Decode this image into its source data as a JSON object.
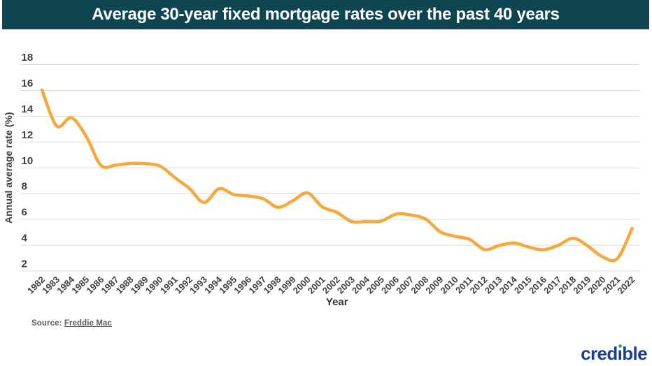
{
  "header": {
    "title": "Average 30-year fixed mortgage rates over the past 40 years",
    "background": "#0e4551"
  },
  "chart_data": {
    "type": "line",
    "title": "Average 30-year fixed mortgage rates over the past 40 years",
    "xlabel": "Year",
    "ylabel": "Annual average rate (%)",
    "x": [
      "1982",
      "1983",
      "1984",
      "1985",
      "1986",
      "1987",
      "1988",
      "1989",
      "1990",
      "1991",
      "1992",
      "1993",
      "1994",
      "1995",
      "1996",
      "1997",
      "1998",
      "1999",
      "2000",
      "2001",
      "2002",
      "2003",
      "2004",
      "2005",
      "2006",
      "2007",
      "2008",
      "2009",
      "2010",
      "2011",
      "2012",
      "2013",
      "2014",
      "2015",
      "2016",
      "2017",
      "2018",
      "2019",
      "2020",
      "2021",
      "2022"
    ],
    "series": [
      {
        "name": "30-year fixed mortgage rate (%)",
        "values": [
          16.04,
          13.24,
          13.88,
          12.43,
          10.19,
          10.21,
          10.34,
          10.32,
          10.13,
          9.25,
          8.39,
          7.31,
          8.38,
          7.93,
          7.81,
          7.6,
          6.94,
          7.44,
          8.05,
          6.97,
          6.54,
          5.83,
          5.84,
          5.87,
          6.41,
          6.34,
          6.03,
          5.04,
          4.69,
          4.45,
          3.66,
          3.98,
          4.17,
          3.85,
          3.65,
          3.99,
          4.54,
          3.94,
          3.1,
          2.96,
          5.3
        ]
      }
    ],
    "ylim": [
      2,
      18
    ],
    "yticks": [
      2,
      4,
      6,
      8,
      10,
      12,
      14,
      16,
      18
    ],
    "grid": "horizontal-only",
    "legend": "none",
    "line_color": "#f5a83b",
    "gridline_color": "#dcdcdc",
    "tick_label_color": "#3f3f3f",
    "axis_title_color": "#333333"
  },
  "source": {
    "prefix": "Source: ",
    "link_text": "Freddie Mac"
  },
  "logo": {
    "wordmark": "credible",
    "part1": "cred",
    "dotless_i": "ı",
    "part2": "ble",
    "color": "#1c3e91",
    "dot_color": "#2fae7e"
  }
}
